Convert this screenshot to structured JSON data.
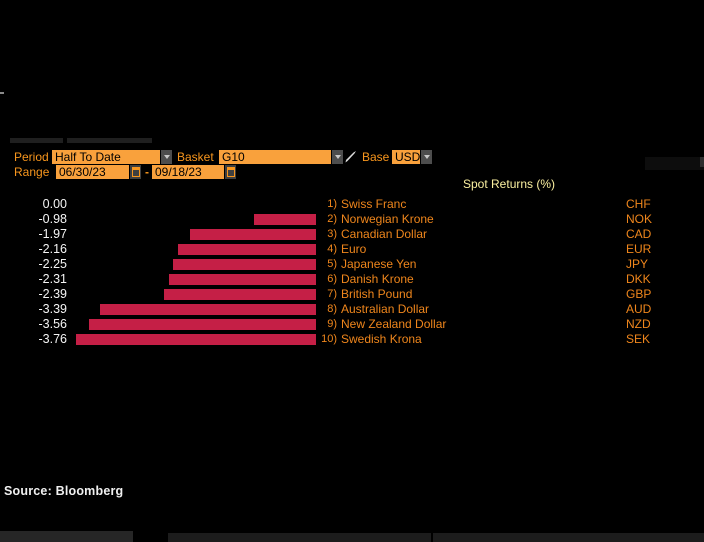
{
  "toolbar": {
    "period_label": "Period",
    "period_value": "Half To Date",
    "basket_label": "Basket",
    "basket_value": "G10",
    "base_label": "Base",
    "base_value": "USD",
    "range_label": "Range",
    "range_start": "06/30/23",
    "range_separator": "-",
    "range_end": "09/18/23"
  },
  "chart_data": {
    "type": "bar",
    "orientation": "horizontal",
    "title": "Spot Returns (%)",
    "xlim": [
      -4.0,
      0
    ],
    "grid": false,
    "bar_color": "#c51f46",
    "rows": [
      {
        "rank": "1)",
        "name": "Swiss Franc",
        "code": "CHF",
        "value": 0.0,
        "label": "0.00"
      },
      {
        "rank": "2)",
        "name": "Norwegian Krone",
        "code": "NOK",
        "value": -0.98,
        "label": "-0.98"
      },
      {
        "rank": "3)",
        "name": "Canadian Dollar",
        "code": "CAD",
        "value": -1.97,
        "label": "-1.97"
      },
      {
        "rank": "4)",
        "name": "Euro",
        "code": "EUR",
        "value": -2.16,
        "label": "-2.16"
      },
      {
        "rank": "5)",
        "name": "Japanese Yen",
        "code": "JPY",
        "value": -2.25,
        "label": "-2.25"
      },
      {
        "rank": "6)",
        "name": "Danish Krone",
        "code": "DKK",
        "value": -2.31,
        "label": "-2.31"
      },
      {
        "rank": "7)",
        "name": "British Pound",
        "code": "GBP",
        "value": -2.39,
        "label": "-2.39"
      },
      {
        "rank": "8)",
        "name": "Australian Dollar",
        "code": "AUD",
        "value": -3.39,
        "label": "-3.39"
      },
      {
        "rank": "9)",
        "name": "New Zealand Dollar",
        "code": "NZD",
        "value": -3.56,
        "label": "-3.56"
      },
      {
        "rank": "10)",
        "name": "Swedish Krona",
        "code": "SEK",
        "value": -3.76,
        "label": "-3.76"
      }
    ]
  },
  "footer": {
    "source": "Source: Bloomberg"
  },
  "colors": {
    "background": "#000000",
    "amber_label": "#f8961d",
    "field_fill": "#f9a13c",
    "bar_red": "#c51f46",
    "title_yellow": "#fbf0a0",
    "value_white": "#f5f5f5",
    "name_orange": "#ef861c"
  }
}
